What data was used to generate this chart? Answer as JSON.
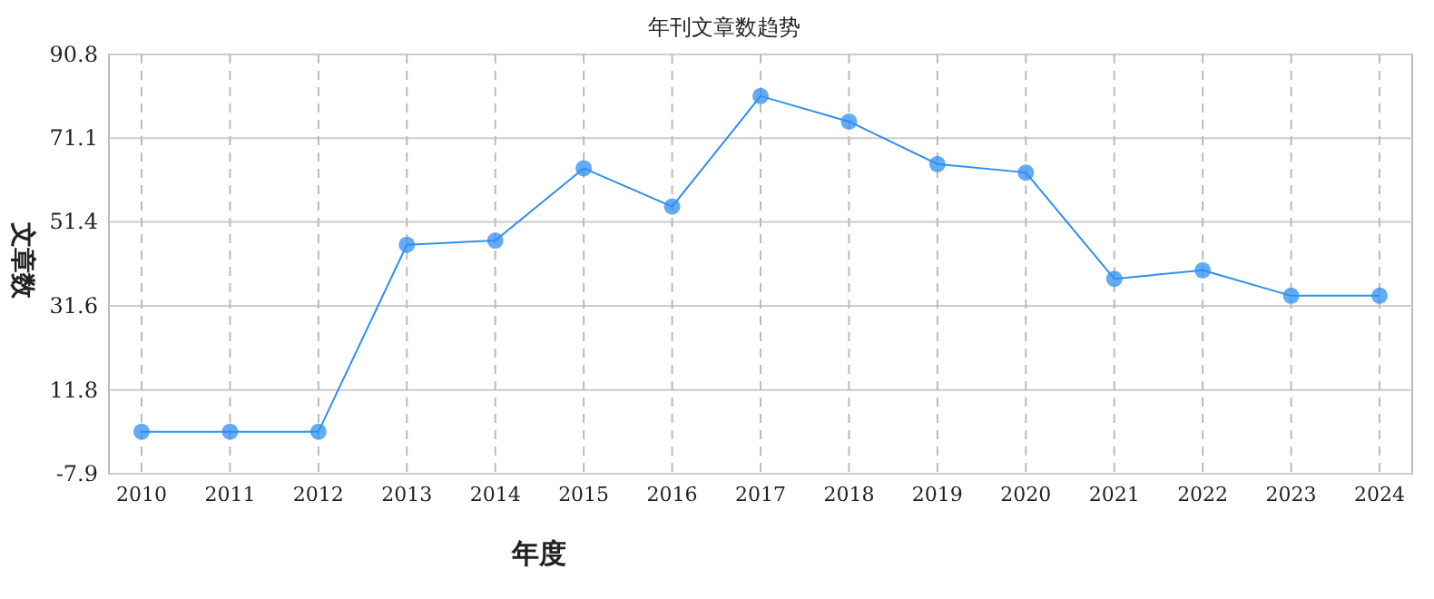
{
  "chart_data": {
    "type": "line",
    "title": "年刊文章数趋势",
    "xlabel": "年度",
    "ylabel": "文章数",
    "categories": [
      "2010",
      "2011",
      "2012",
      "2013",
      "2014",
      "2015",
      "2016",
      "2017",
      "2018",
      "2019",
      "2020",
      "2021",
      "2022",
      "2023",
      "2024"
    ],
    "series": [
      {
        "color": "#2f8ff0",
        "values": [
          2,
          2,
          2,
          46,
          47,
          64,
          55,
          81,
          75,
          65,
          63,
          38,
          40,
          34,
          34
        ]
      }
    ],
    "ylim": [
      -7.9,
      90.8
    ],
    "yticks": [
      -7.9,
      11.8,
      31.6,
      51.4,
      71.1,
      90.8
    ],
    "grid": true,
    "marker": "circle",
    "line_style": "solid"
  }
}
